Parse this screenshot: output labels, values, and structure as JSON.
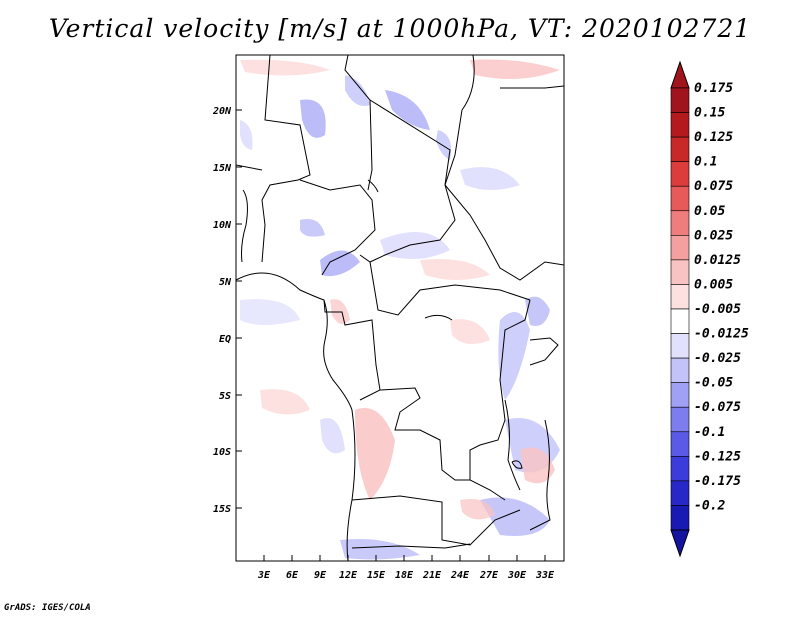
{
  "title": "Vertical velocity [m/s] at 1000hPa, VT: 2020102721",
  "credit": "GrADS: IGES/COLA",
  "map": {
    "lat_labels": [
      "20N",
      "15N",
      "10N",
      "5N",
      "EQ",
      "5S",
      "10S",
      "15S"
    ],
    "lon_labels": [
      "3E",
      "6E",
      "9E",
      "12E",
      "15E",
      "18E",
      "21E",
      "24E",
      "27E",
      "30E",
      "33E"
    ]
  },
  "colorbar": {
    "levels": [
      {
        "label": "0.175",
        "color": "#a0141e"
      },
      {
        "label": "0.15",
        "color": "#b4191e"
      },
      {
        "label": "0.125",
        "color": "#c82828"
      },
      {
        "label": "0.1",
        "color": "#dc3c3c"
      },
      {
        "label": "0.075",
        "color": "#e65a5a"
      },
      {
        "label": "0.05",
        "color": "#f07d7d"
      },
      {
        "label": "0.025",
        "color": "#f5a0a0"
      },
      {
        "label": "0.0125",
        "color": "#fac3c3"
      },
      {
        "label": "0.005",
        "color": "#fde1e1"
      },
      {
        "label": "-0.005",
        "color": "#ffffff"
      },
      {
        "label": "-0.0125",
        "color": "#e1e1fd"
      },
      {
        "label": "-0.025",
        "color": "#c3c3fa"
      },
      {
        "label": "-0.05",
        "color": "#a0a0f5"
      },
      {
        "label": "-0.075",
        "color": "#7d7df0"
      },
      {
        "label": "-0.1",
        "color": "#5a5ae6"
      },
      {
        "label": "-0.125",
        "color": "#3c3cdc"
      },
      {
        "label": "-0.175",
        "color": "#2828c8"
      },
      {
        "label": "-0.2",
        "color": "#1919b4"
      }
    ],
    "top_triangle_color": "#a0141e",
    "bottom_triangle_color": "#1414a0"
  }
}
